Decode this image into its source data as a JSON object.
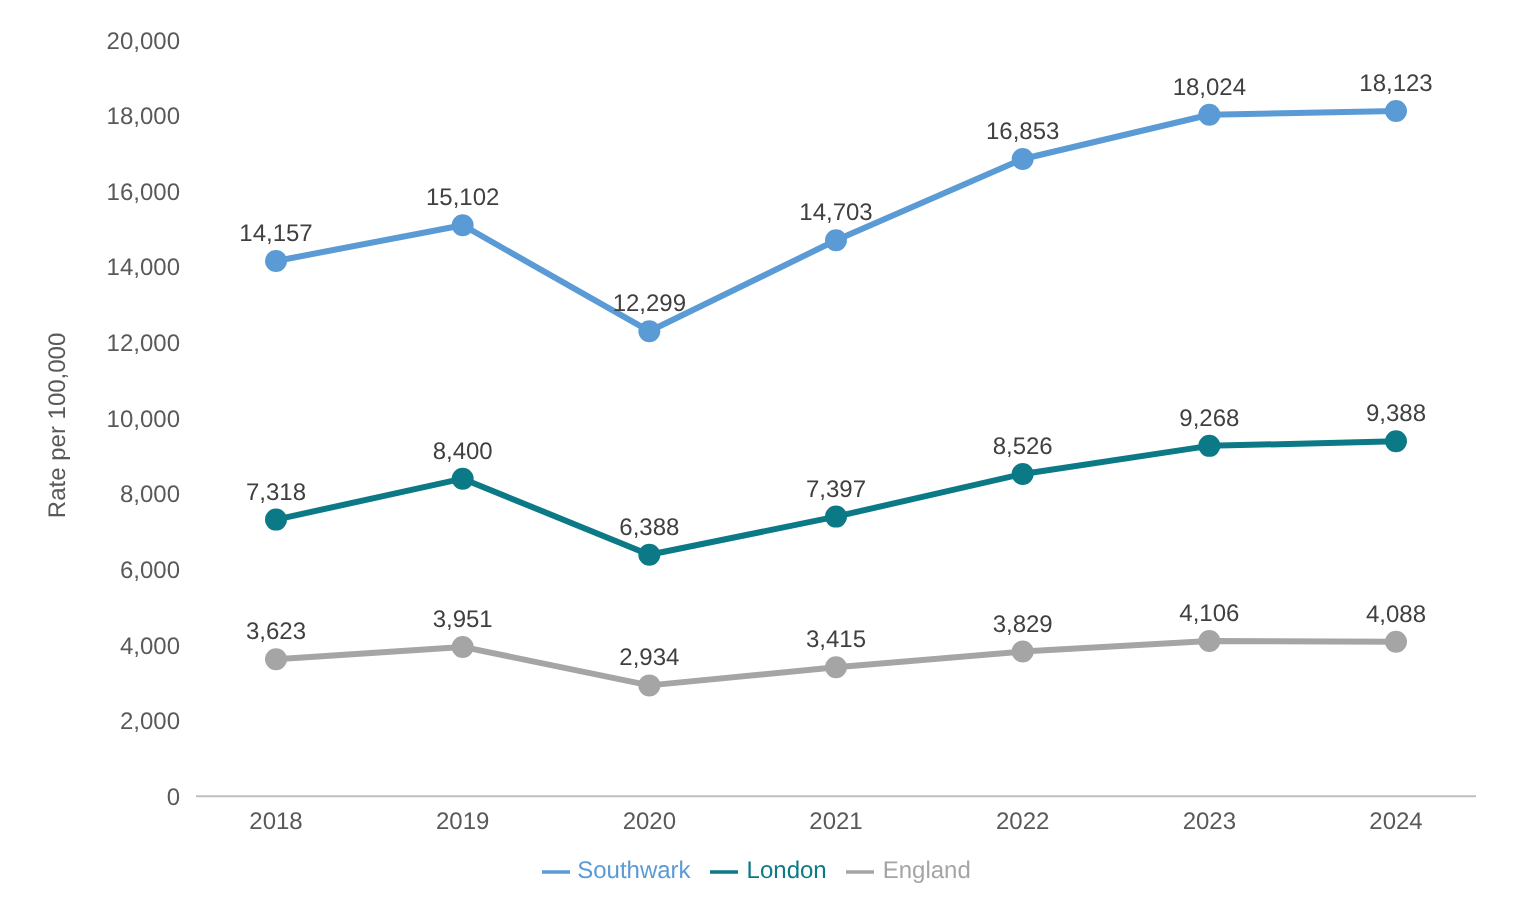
{
  "chart_data": {
    "type": "line",
    "ylabel": "Rate per 100,000",
    "categories": [
      "2018",
      "2019",
      "2020",
      "2021",
      "2022",
      "2023",
      "2024"
    ],
    "series": [
      {
        "name": "Southwark",
        "color": "#5b9bd5",
        "values": [
          14157,
          15102,
          12299,
          14703,
          16853,
          18024,
          18123
        ],
        "value_labels": [
          "14,157",
          "15,102",
          "12,299",
          "14,703",
          "16,853",
          "18,024",
          "18,123"
        ]
      },
      {
        "name": "London",
        "color": "#0b7a86",
        "values": [
          7318,
          8400,
          6388,
          7397,
          8526,
          9268,
          9388
        ],
        "value_labels": [
          "7,318",
          "8,400",
          "6,388",
          "7,397",
          "8,526",
          "9,268",
          "9,388"
        ]
      },
      {
        "name": "England",
        "color": "#a5a5a5",
        "values": [
          3623,
          3951,
          2934,
          3415,
          3829,
          4106,
          4088
        ],
        "value_labels": [
          "3,623",
          "3,951",
          "2,934",
          "3,415",
          "3,829",
          "4,106",
          "4,088"
        ]
      }
    ],
    "ylim": [
      0,
      20000
    ],
    "yticks": [
      0,
      {
        "value": 2000,
        "label": "2,000"
      },
      {
        "value": 4000,
        "label": "4,000"
      },
      {
        "value": 6000,
        "label": "6,000"
      },
      {
        "value": 8000,
        "label": "8,000"
      },
      {
        "value": 10000,
        "label": "10,000"
      },
      {
        "value": 12000,
        "label": "12,000"
      },
      {
        "value": 14000,
        "label": "14,000"
      },
      {
        "value": 16000,
        "label": "16,000"
      },
      {
        "value": 18000,
        "label": "18,000"
      },
      {
        "value": 20000,
        "label": "20,000"
      }
    ],
    "grid": false,
    "legend": "bottom",
    "marker": "circle",
    "line_style": "solid"
  }
}
